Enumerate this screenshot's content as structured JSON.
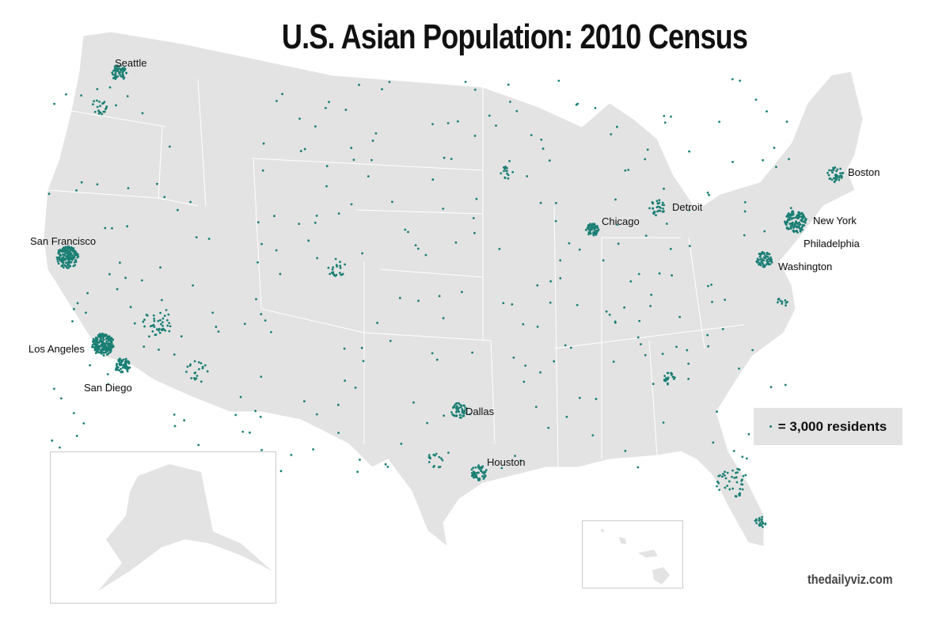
{
  "title": "U.S. Asian Population: 2010 Census",
  "legend": {
    "label": "= 3,000 residents",
    "icon": "dot-icon",
    "dot_color": "#1a7f74"
  },
  "colors": {
    "land": "#e3e3e4",
    "borders": "#ffffff",
    "dots": "#1a7f74"
  },
  "cities": [
    "Seattle",
    "San Francisco",
    "Los Angeles",
    "San Diego",
    "Dallas",
    "Houston",
    "Chicago",
    "Detroit",
    "Boston",
    "New York",
    "Philadelphia",
    "Washington"
  ],
  "insets": [
    "Alaska",
    "Hawaii"
  ],
  "credit": "thedailyviz.com"
}
